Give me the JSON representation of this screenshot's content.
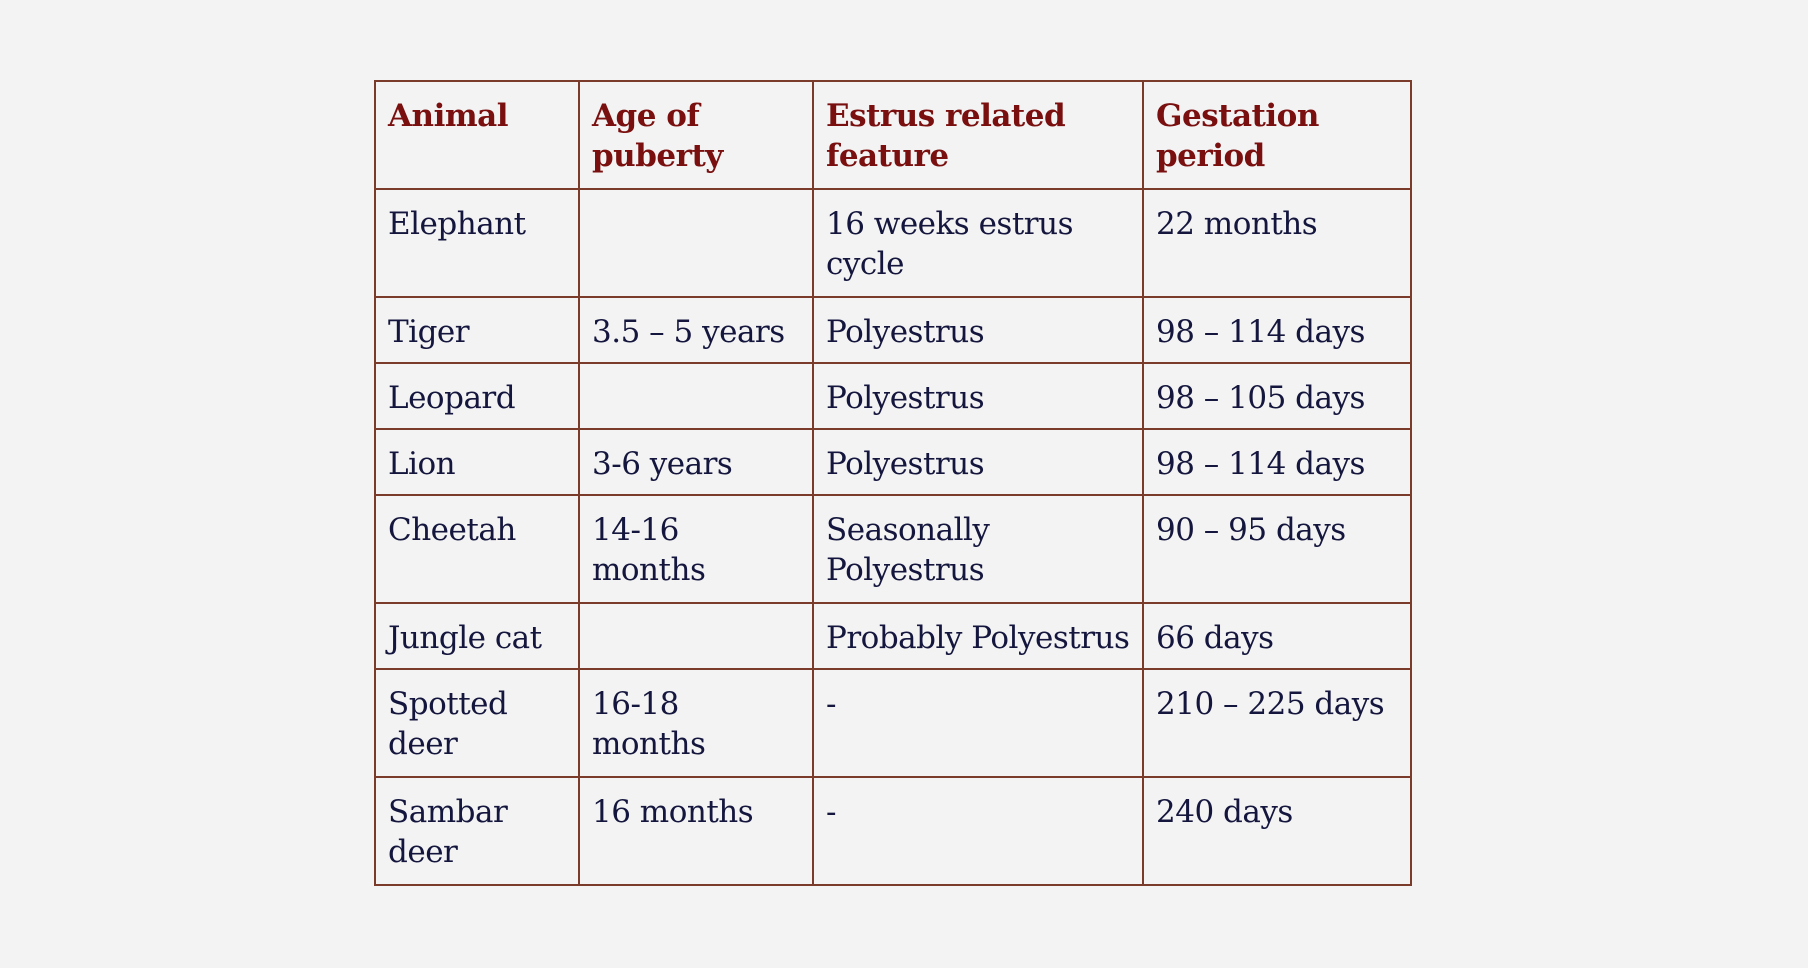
{
  "table": {
    "headers": [
      "Animal",
      "Age of puberty",
      "Estrus related feature",
      "Gestation period"
    ],
    "rows": [
      [
        "Elephant",
        "",
        "16 weeks estrus cycle",
        "22 months"
      ],
      [
        "Tiger",
        "3.5 – 5 years",
        "Polyestrus",
        "98 – 114 days"
      ],
      [
        "Leopard",
        "",
        "Polyestrus",
        "98 – 105 days"
      ],
      [
        "Lion",
        "3-6 years",
        "Polyestrus",
        "98 – 114 days"
      ],
      [
        "Cheetah",
        "14-16 months",
        "Seasonally Polyestrus",
        "90 – 95 days"
      ],
      [
        "Jungle cat",
        "",
        "Probably Polyestrus",
        "66 days"
      ],
      [
        "Spotted deer",
        "16-18 months",
        "-",
        "210 – 225 days"
      ],
      [
        "Sambar deer",
        "16 months",
        "-",
        "240 days"
      ]
    ]
  },
  "colors": {
    "header_text": "#7a0f0f",
    "body_text": "#14163d",
    "border": "#7a3b2a",
    "background": "#f3f3f3"
  }
}
